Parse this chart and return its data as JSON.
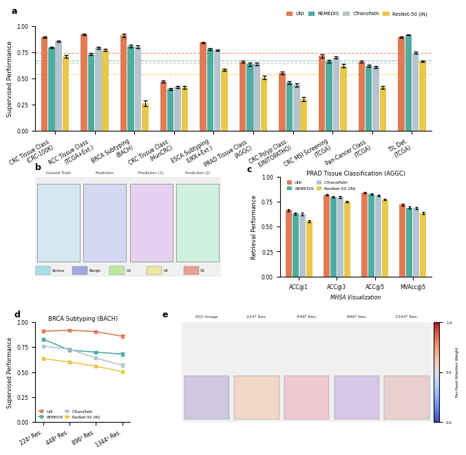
{
  "panel_a": {
    "title": "",
    "ylabel": "Supervised Performance",
    "ylim": [
      0.0,
      1.0
    ],
    "categories": [
      "CRC Tissue Class.\n(CRC-100K)",
      "RCC Tissue Class.\n(TCGA+Ext.)",
      "BRCA Subtyping\n(BACH)",
      "CRC Tissue Class.\n(HunCRC)",
      "ESCA Subtyping\n(UKK+Ext.)",
      "PRAD Tissue Class.\n(AGGC)",
      "CRC Polyp Class.\n(UNITOPATHO)",
      "CRC MSI Screening\n(TCGA)",
      "Pan-Cancer Class.\n(TCGA)",
      "TIL Det.\n(TCGA)"
    ],
    "uni": [
      0.895,
      0.92,
      0.91,
      0.47,
      0.84,
      0.66,
      0.555,
      0.715,
      0.66,
      0.895
    ],
    "remedis": [
      0.795,
      0.73,
      0.81,
      0.4,
      0.78,
      0.635,
      0.46,
      0.665,
      0.62,
      0.915
    ],
    "ctranspath": [
      0.855,
      0.795,
      0.8,
      0.42,
      0.77,
      0.64,
      0.44,
      0.7,
      0.61,
      0.745
    ],
    "resnet50": [
      0.71,
      0.77,
      0.265,
      0.415,
      0.585,
      0.51,
      0.305,
      0.62,
      0.415,
      0.665
    ],
    "uni_err": [
      0.005,
      0.005,
      0.015,
      0.012,
      0.006,
      0.01,
      0.012,
      0.015,
      0.01,
      0.005
    ],
    "remedis_err": [
      0.008,
      0.01,
      0.012,
      0.01,
      0.008,
      0.015,
      0.015,
      0.015,
      0.01,
      0.005
    ],
    "ctranspath_err": [
      0.008,
      0.01,
      0.012,
      0.01,
      0.008,
      0.012,
      0.015,
      0.012,
      0.01,
      0.008
    ],
    "resnet50_err": [
      0.012,
      0.01,
      0.025,
      0.015,
      0.01,
      0.015,
      0.02,
      0.015,
      0.012,
      0.008
    ],
    "hlines": {
      "uni": 0.745,
      "remedis": 0.67,
      "ctranspath": 0.645,
      "resnet50": 0.54
    }
  },
  "panel_c": {
    "title": "PRAD Tissue Classification (AGGC)",
    "ylabel": "Retrieval Performance",
    "xlabel": "",
    "ylim": [
      0.0,
      1.0
    ],
    "categories": [
      "ACC@1",
      "ACC@3",
      "ACC@5",
      "MVAcc@5"
    ],
    "uni": [
      0.665,
      0.82,
      0.84,
      0.72
    ],
    "remedis": [
      0.63,
      0.8,
      0.825,
      0.69
    ],
    "ctranspath": [
      0.625,
      0.795,
      0.815,
      0.685
    ],
    "resnet50": [
      0.555,
      0.75,
      0.77,
      0.635
    ],
    "uni_err": [
      0.01,
      0.008,
      0.007,
      0.01
    ],
    "remedis_err": [
      0.012,
      0.008,
      0.007,
      0.01
    ],
    "ctranspath_err": [
      0.012,
      0.008,
      0.007,
      0.01
    ],
    "resnet50_err": [
      0.012,
      0.01,
      0.009,
      0.012
    ]
  },
  "panel_d": {
    "title": "BRCA Subtyping (BACH)",
    "ylabel": "Supervised Performance",
    "xlabel": "",
    "ylim": [
      0.0,
      1.0
    ],
    "categories": [
      "224² Res.",
      "448² Res.",
      "896² Res.",
      "1344² Res."
    ],
    "uni": [
      0.91,
      0.92,
      0.905,
      0.86
    ],
    "remedis": [
      0.83,
      0.72,
      0.7,
      0.68
    ],
    "ctranspath": [
      0.76,
      0.73,
      0.64,
      0.57
    ],
    "resnet50": [
      0.635,
      0.6,
      0.56,
      0.505
    ],
    "uni_err": [
      0.015,
      0.01,
      0.012,
      0.015
    ],
    "remedis_err": [
      0.015,
      0.012,
      0.012,
      0.015
    ],
    "ctranspath_err": [
      0.012,
      0.012,
      0.015,
      0.015
    ],
    "resnet50_err": [
      0.015,
      0.015,
      0.015,
      0.015
    ]
  },
  "colors": {
    "uni": "#E07B54",
    "remedis": "#4EADA0",
    "ctranspath": "#B5C4CF",
    "resnet50": "#E8C84A"
  },
  "legend_labels": [
    "UNI",
    "REMEDIS",
    "CTransPath",
    "ResNet-50 (IN)"
  ],
  "panel_b_placeholder": true,
  "panel_e_placeholder": true
}
